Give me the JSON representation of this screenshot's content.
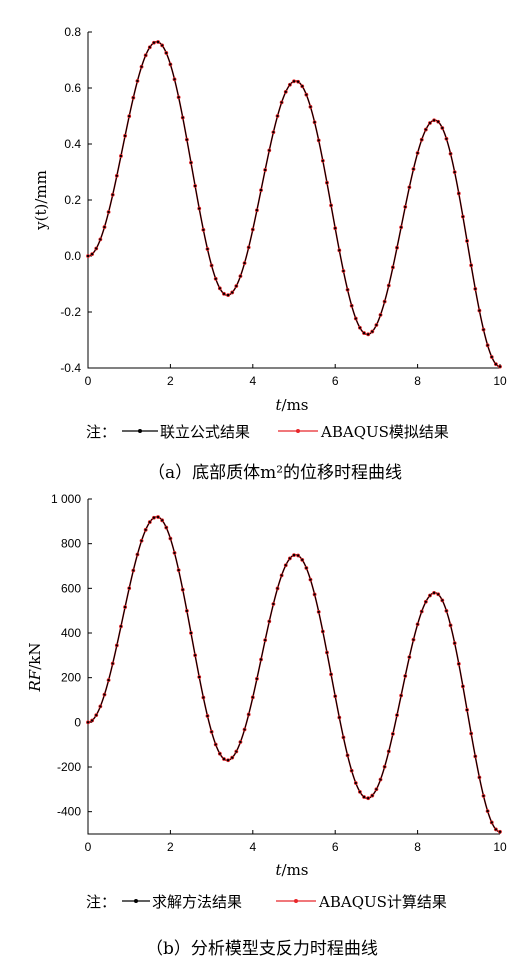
{
  "colors": {
    "series1": "#000000",
    "series2": "#e8262a",
    "axis": "#000000"
  },
  "chart_data": [
    {
      "type": "line",
      "xlabel": "t/ms",
      "xlabel_italic": "t",
      "xlabel_unit": "/ms",
      "ylabel": "y(t)/mm",
      "xlim": [
        0,
        10
      ],
      "ylim": [
        -0.4,
        0.8
      ],
      "xticks": [
        0,
        2,
        4,
        6,
        8,
        10
      ],
      "xtick_labels": [
        "0",
        "2",
        "4",
        "6",
        "8",
        "10"
      ],
      "yticks": [
        -0.4,
        -0.2,
        0.0,
        0.2,
        0.4,
        0.6,
        0.8
      ],
      "ytick_labels": [
        "-0.4",
        "-0.2",
        "0.0",
        "0.2",
        "0.4",
        "0.6",
        "0.8"
      ],
      "grid": false,
      "legend_placement": "bottom",
      "legend_prefix": "注：",
      "legend": [
        "联立公式结果",
        "ABAQUS模拟结果"
      ],
      "caption": "（a）底部质体m²的位移时程曲线",
      "series_keypoints": {
        "x": [
          0,
          1.67,
          3.38,
          5.04,
          6.78,
          8.42,
          10.0
        ],
        "y": [
          0.0,
          0.765,
          -0.14,
          0.625,
          -0.28,
          0.485,
          -0.395
        ]
      },
      "series": [
        {
          "name": "联立公式结果",
          "color": "#000000"
        },
        {
          "name": "ABAQUS模拟结果",
          "color": "#e8262a"
        }
      ]
    },
    {
      "type": "line",
      "xlabel": "t/ms",
      "xlabel_italic": "t",
      "xlabel_unit": "/ms",
      "ylabel": "RF/kN",
      "xlim": [
        0,
        10
      ],
      "ylim": [
        -500,
        1000
      ],
      "xticks": [
        0,
        2,
        4,
        6,
        8,
        10
      ],
      "xtick_labels": [
        "0",
        "2",
        "4",
        "6",
        "8",
        "10"
      ],
      "yticks": [
        -400,
        -200,
        0,
        200,
        400,
        600,
        800,
        1000
      ],
      "ytick_labels": [
        "-400",
        "-200",
        "0",
        "200",
        "400",
        "600",
        "800",
        "1 000"
      ],
      "grid": false,
      "legend_placement": "bottom",
      "legend_prefix": "注：",
      "legend": [
        "求解方法结果",
        "ABAQUS计算结果"
      ],
      "caption": "（b）分析模型支反力时程曲线",
      "series_keypoints": {
        "x": [
          0,
          1.67,
          3.38,
          5.04,
          6.78,
          8.42,
          10.0
        ],
        "y": [
          0,
          920,
          -170,
          750,
          -340,
          580,
          -490
        ]
      },
      "series": [
        {
          "name": "求解方法结果",
          "color": "#000000"
        },
        {
          "name": "ABAQUS计算结果",
          "color": "#e8262a"
        }
      ]
    }
  ]
}
